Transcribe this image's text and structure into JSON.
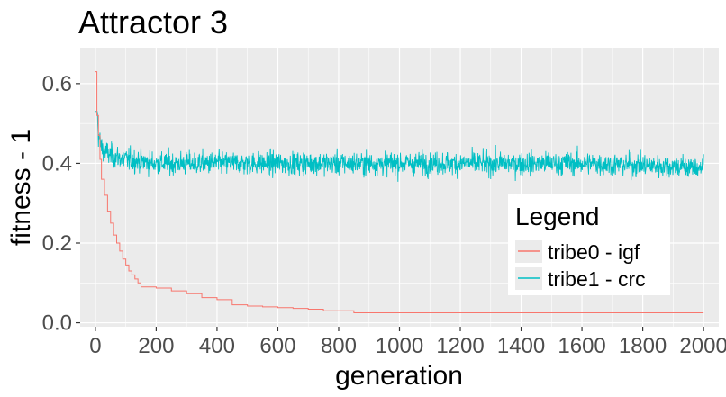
{
  "chart_data": {
    "type": "line",
    "title": "Attractor 3",
    "xlabel": "generation",
    "ylabel": "fitness - 1",
    "xlim": [
      -50,
      2050
    ],
    "ylim": [
      -0.01,
      0.69
    ],
    "x_ticks": [
      0,
      200,
      400,
      600,
      800,
      1000,
      1200,
      1400,
      1600,
      1800,
      2000
    ],
    "x_tick_labels": [
      "0",
      "200",
      "400",
      "600",
      "800",
      "1000",
      "1200",
      "1400",
      "1600",
      "1800",
      "2000"
    ],
    "y_ticks": [
      0.0,
      0.2,
      0.4,
      0.6
    ],
    "y_tick_labels": [
      "0.0",
      "0.2",
      "0.4",
      "0.6"
    ],
    "grid": true,
    "legend": {
      "title": "Legend",
      "placement": "bottom-right inside plot"
    },
    "series": [
      {
        "name": "tribe0 - igf",
        "color": "#f8766d",
        "style": "step",
        "x": [
          0,
          5,
          10,
          15,
          20,
          30,
          40,
          50,
          60,
          70,
          80,
          90,
          100,
          110,
          120,
          130,
          140,
          150,
          200,
          250,
          300,
          350,
          400,
          450,
          500,
          550,
          600,
          650,
          700,
          750,
          800,
          850,
          900,
          1000,
          1200,
          1400,
          1600,
          1800,
          2000
        ],
        "values": [
          0.63,
          0.52,
          0.47,
          0.41,
          0.36,
          0.32,
          0.28,
          0.25,
          0.22,
          0.2,
          0.18,
          0.16,
          0.145,
          0.13,
          0.12,
          0.11,
          0.1,
          0.09,
          0.087,
          0.08,
          0.073,
          0.063,
          0.058,
          0.045,
          0.042,
          0.04,
          0.038,
          0.036,
          0.034,
          0.03,
          0.03,
          0.025,
          0.025,
          0.025,
          0.025,
          0.025,
          0.025,
          0.025,
          0.025
        ]
      },
      {
        "name": "tribe1 - crc",
        "color": "#00bfc4",
        "style": "noisy",
        "mean_x": [
          0,
          5,
          10,
          20,
          30,
          50,
          100,
          200,
          400,
          800,
          1200,
          1600,
          2000
        ],
        "mean_values": [
          0.64,
          0.55,
          0.47,
          0.44,
          0.43,
          0.42,
          0.41,
          0.4,
          0.4,
          0.4,
          0.4,
          0.4,
          0.39
        ],
        "noise_amplitude": 0.045,
        "points_count": 2000,
        "max_value": 0.53,
        "min_value": 0.29
      }
    ]
  }
}
